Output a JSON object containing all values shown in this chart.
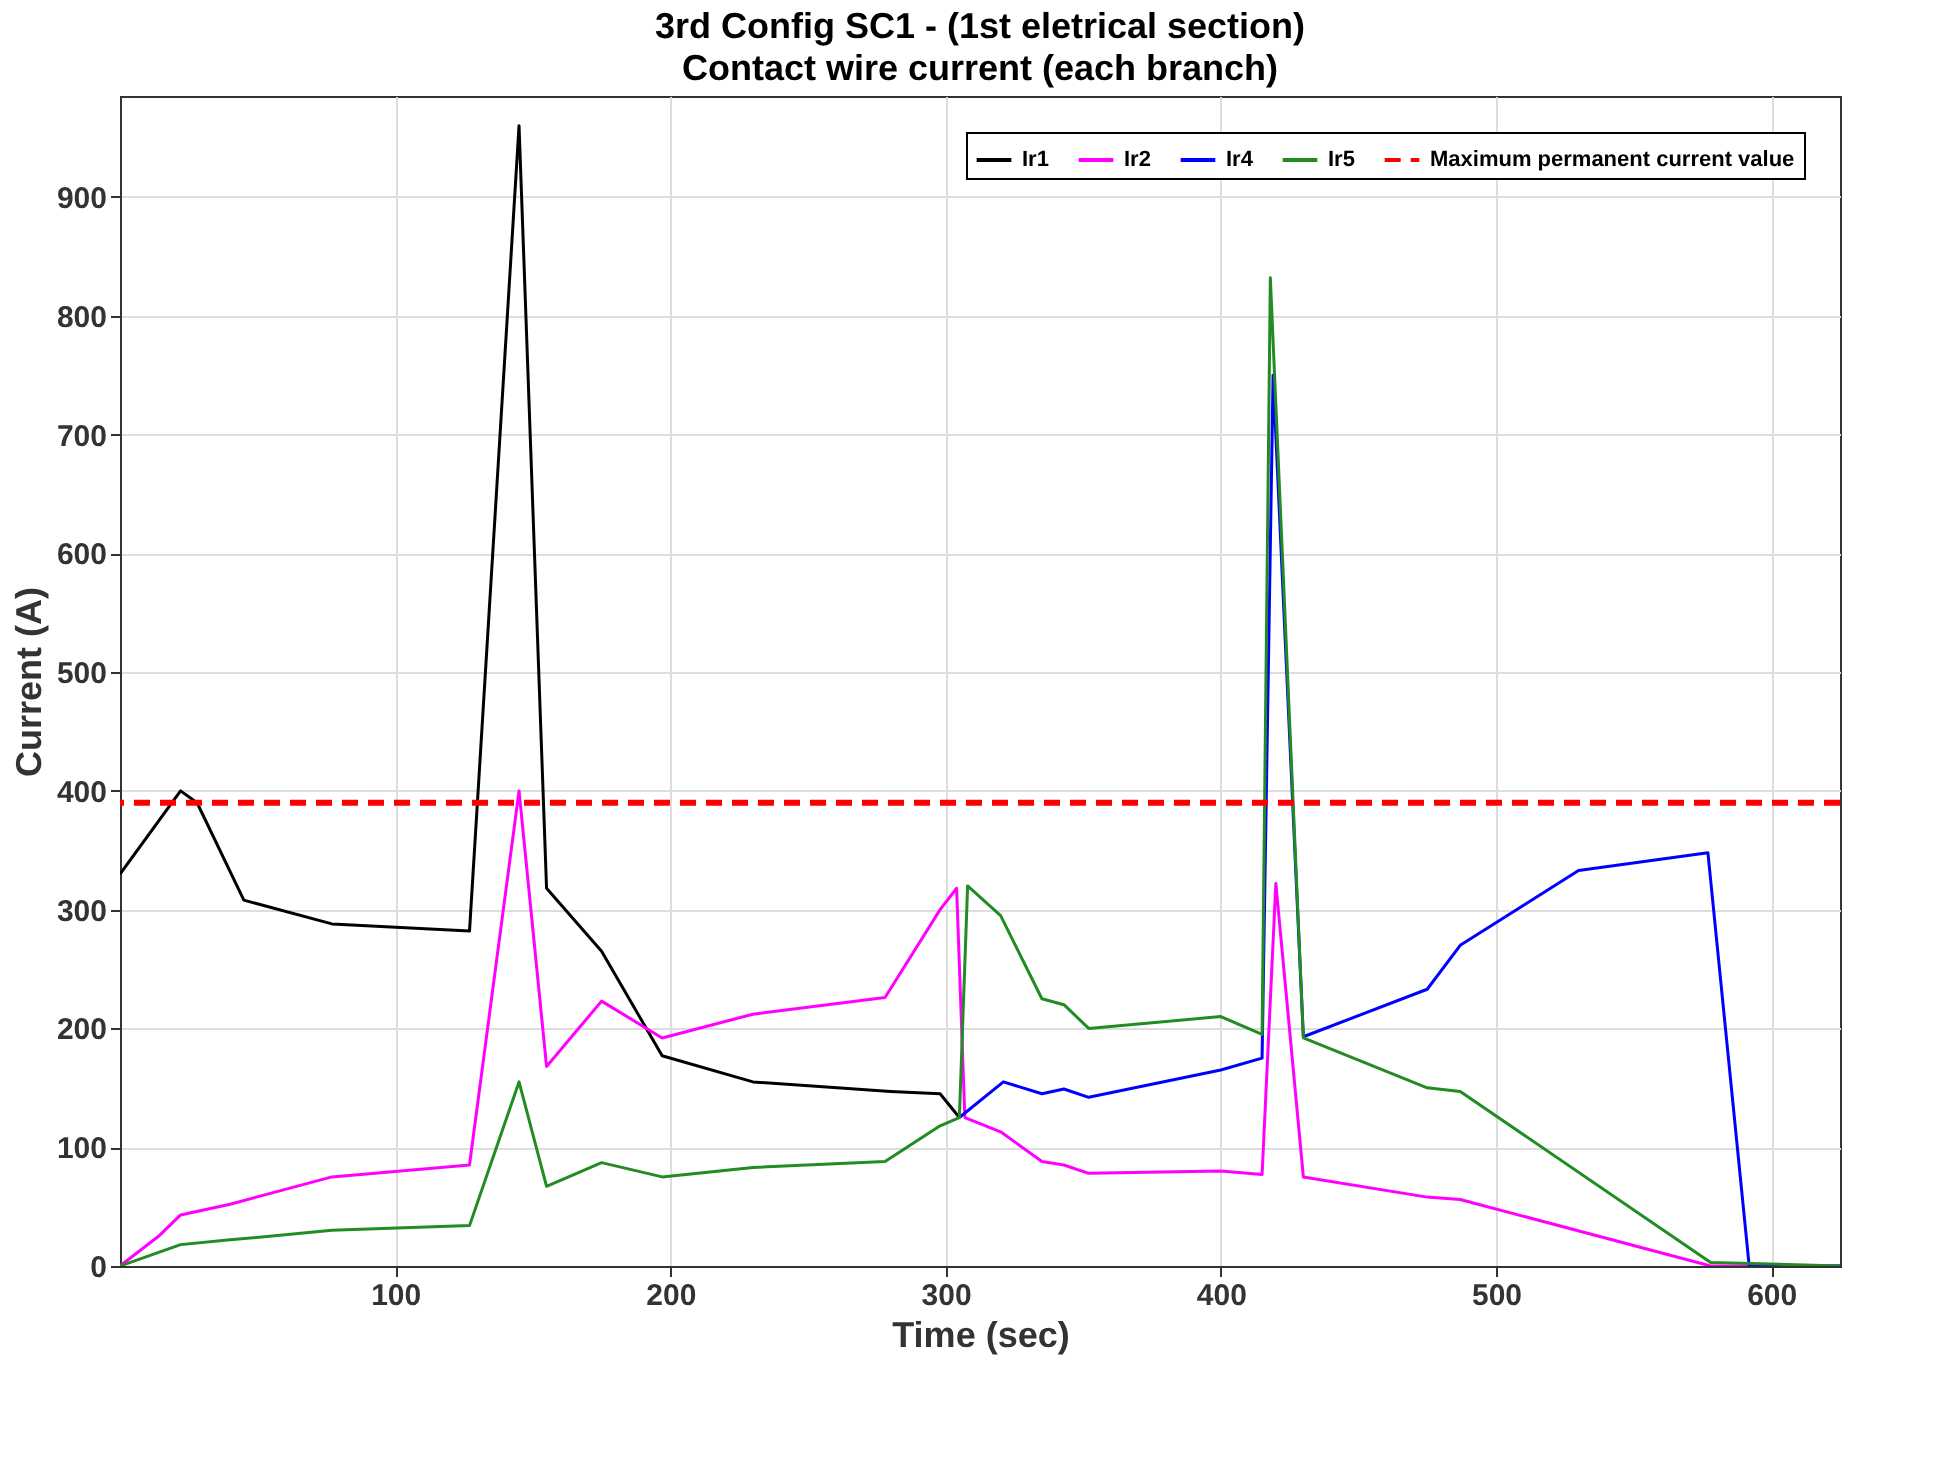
{
  "chart_data": {
    "type": "line",
    "title": "3rd Config SC1 - (1st eletrical section)",
    "subtitle": "Contact wire current (each branch)",
    "xlabel": "Time (sec)",
    "ylabel": "Current (A)",
    "xlim": [
      0,
      625
    ],
    "xticks": [
      100,
      200,
      300,
      400,
      500,
      600
    ],
    "ylim": [
      0,
      985
    ],
    "yticks": [
      0,
      100,
      200,
      300,
      400,
      500,
      600,
      700,
      800,
      900
    ],
    "grid": true,
    "legend": "top right",
    "line_style": "solid",
    "marker": "none",
    "series": [
      {
        "name": "Ir1",
        "color": "#000000",
        "x": [
          0,
          22,
          28,
          45,
          77,
          127,
          145,
          155,
          175,
          197,
          230,
          280,
          298,
          305
        ],
        "values": [
          330,
          400,
          390,
          308,
          288,
          282,
          960,
          318,
          265,
          177,
          155,
          147,
          145,
          125
        ]
      },
      {
        "name": "Ir2",
        "color": "#ff00ff",
        "x": [
          0,
          14,
          22,
          40,
          77,
          127,
          145,
          155,
          175,
          197,
          230,
          278,
          298,
          304,
          307,
          320,
          335,
          343,
          352,
          400,
          415,
          420,
          430,
          475,
          487,
          578,
          625
        ],
        "values": [
          0,
          25,
          43,
          52,
          75,
          85,
          400,
          168,
          223,
          192,
          212,
          226,
          300,
          318,
          125,
          113,
          88,
          85,
          78,
          80,
          77,
          322,
          75,
          58,
          56,
          0,
          0
        ]
      },
      {
        "name": "Ir4",
        "color": "#0000ff",
        "x": [
          305,
          321,
          335,
          343,
          352,
          400,
          415,
          419,
          430,
          475,
          487,
          530,
          577,
          592,
          625
        ],
        "values": [
          125,
          155,
          145,
          149,
          142,
          165,
          175,
          750,
          193,
          233,
          270,
          333,
          348,
          0,
          0
        ]
      },
      {
        "name": "Ir5",
        "color": "#228b22",
        "x": [
          0,
          22,
          40,
          77,
          127,
          145,
          155,
          175,
          197,
          230,
          278,
          298,
          305,
          308,
          320,
          335,
          343,
          352,
          400,
          415,
          418,
          430,
          475,
          487,
          578,
          625
        ],
        "values": [
          0,
          18,
          22,
          30,
          34,
          155,
          67,
          87,
          75,
          83,
          88,
          118,
          125,
          320,
          295,
          225,
          220,
          200,
          210,
          195,
          832,
          192,
          150,
          147,
          3,
          0
        ]
      }
    ],
    "ref_lines": [
      {
        "axis": "y",
        "value": 390,
        "label": "Maximum permanent current value",
        "color": "#ff0000",
        "line_style": "dashed"
      }
    ]
  }
}
